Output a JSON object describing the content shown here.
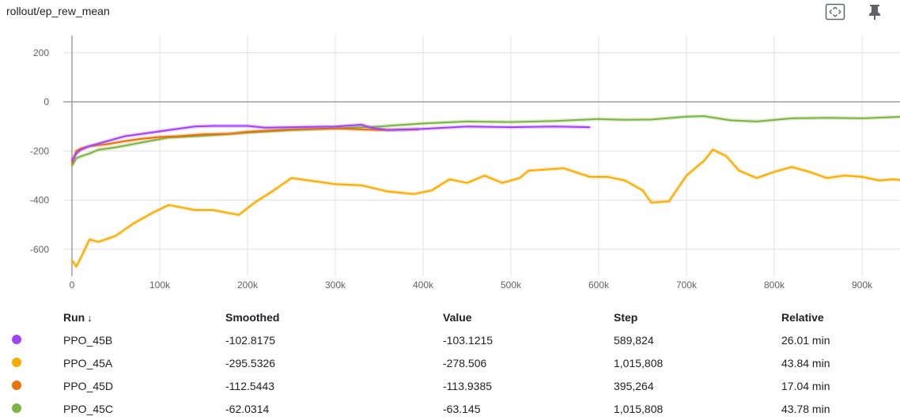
{
  "header": {
    "title": "rollout/ep_rew_mean",
    "fit_icon": "fit-to-domain-icon",
    "pin_icon": "pin-icon"
  },
  "chart_data": {
    "type": "line",
    "title": "rollout/ep_rew_mean",
    "xlim": [
      0,
      950000
    ],
    "ylim": [
      -710,
      270
    ],
    "x_ticks": [
      0,
      100000,
      200000,
      300000,
      400000,
      500000,
      600000,
      700000,
      800000,
      900000
    ],
    "x_tick_labels": [
      "0",
      "100k",
      "200k",
      "300k",
      "400k",
      "500k",
      "600k",
      "700k",
      "800k",
      "900k"
    ],
    "y_ticks": [
      200,
      0,
      -200,
      -400,
      -600
    ],
    "y_tick_labels": [
      "200",
      "0",
      "-200",
      "-400",
      "-600"
    ],
    "grid": true,
    "series": [
      {
        "name": "PPO_45C",
        "color": "#7cb342",
        "x": [
          0,
          5000,
          10000,
          20000,
          30000,
          50000,
          80000,
          110000,
          150000,
          200000,
          250000,
          300000,
          350000,
          400000,
          450000,
          500000,
          550000,
          600000,
          630000,
          660000,
          700000,
          720000,
          750000,
          780000,
          820000,
          860000,
          900000,
          950000
        ],
        "y": [
          -260,
          -230,
          -222,
          -210,
          -195,
          -185,
          -165,
          -145,
          -138,
          -125,
          -115,
          -108,
          -100,
          -88,
          -80,
          -82,
          -78,
          -70,
          -73,
          -72,
          -60,
          -58,
          -75,
          -80,
          -67,
          -65,
          -67,
          -60
        ]
      },
      {
        "name": "PPO_45A",
        "color": "#f9ab00",
        "x": [
          0,
          5000,
          10000,
          20000,
          30000,
          50000,
          70000,
          90000,
          110000,
          140000,
          160000,
          190000,
          210000,
          230000,
          250000,
          270000,
          300000,
          330000,
          360000,
          390000,
          410000,
          430000,
          450000,
          470000,
          490000,
          510000,
          520000,
          540000,
          560000,
          590000,
          610000,
          630000,
          650000,
          660000,
          680000,
          700000,
          720000,
          730000,
          745000,
          760000,
          780000,
          800000,
          820000,
          840000,
          860000,
          880000,
          900000,
          920000,
          935000,
          950000
        ],
        "y": [
          -645,
          -670,
          -635,
          -560,
          -570,
          -545,
          -495,
          -455,
          -420,
          -440,
          -440,
          -460,
          -405,
          -360,
          -310,
          -320,
          -335,
          -340,
          -365,
          -375,
          -360,
          -315,
          -330,
          -300,
          -330,
          -310,
          -280,
          -275,
          -270,
          -305,
          -305,
          -320,
          -360,
          -410,
          -405,
          -300,
          -240,
          -195,
          -220,
          -280,
          -310,
          -285,
          -265,
          -285,
          -310,
          -300,
          -305,
          -320,
          -315,
          -320
        ]
      },
      {
        "name": "PPO_45D",
        "color": "#e8710a",
        "x": [
          0,
          5000,
          10000,
          20000,
          40000,
          60000,
          80000,
          100000,
          120000,
          150000,
          180000,
          200000,
          250000,
          300000,
          350000,
          395264
        ],
        "y": [
          -250,
          -200,
          -190,
          -180,
          -172,
          -160,
          -150,
          -143,
          -140,
          -132,
          -130,
          -122,
          -112,
          -108,
          -115,
          -112
        ]
      },
      {
        "name": "PPO_45B",
        "color": "#a142f4",
        "x": [
          0,
          5000,
          10000,
          20000,
          40000,
          60000,
          80000,
          100000,
          120000,
          140000,
          160000,
          200000,
          220000,
          250000,
          300000,
          330000,
          340000,
          360000,
          400000,
          450000,
          500000,
          550000,
          589824
        ],
        "y": [
          -240,
          -210,
          -195,
          -180,
          -160,
          -140,
          -130,
          -120,
          -110,
          -100,
          -98,
          -98,
          -105,
          -103,
          -100,
          -93,
          -105,
          -115,
          -110,
          -100,
          -103,
          -100,
          -103
        ]
      }
    ]
  },
  "table": {
    "headers": {
      "run": "Run",
      "smoothed": "Smoothed",
      "value": "Value",
      "step": "Step",
      "relative": "Relative"
    },
    "sort_glyph": "↓",
    "rows": [
      {
        "color": "#a142f4",
        "run": "PPO_45B",
        "smoothed": "-102.8175",
        "value": "-103.1215",
        "step": "589,824",
        "relative": "26.01 min"
      },
      {
        "color": "#f9ab00",
        "run": "PPO_45A",
        "smoothed": "-295.5326",
        "value": "-278.506",
        "step": "1,015,808",
        "relative": "43.84 min"
      },
      {
        "color": "#e8710a",
        "run": "PPO_45D",
        "smoothed": "-112.5443",
        "value": "-113.9385",
        "step": "395,264",
        "relative": "17.04 min"
      },
      {
        "color": "#7cb342",
        "run": "PPO_45C",
        "smoothed": "-62.0314",
        "value": "-63.145",
        "step": "1,015,808",
        "relative": "43.78 min"
      }
    ]
  }
}
